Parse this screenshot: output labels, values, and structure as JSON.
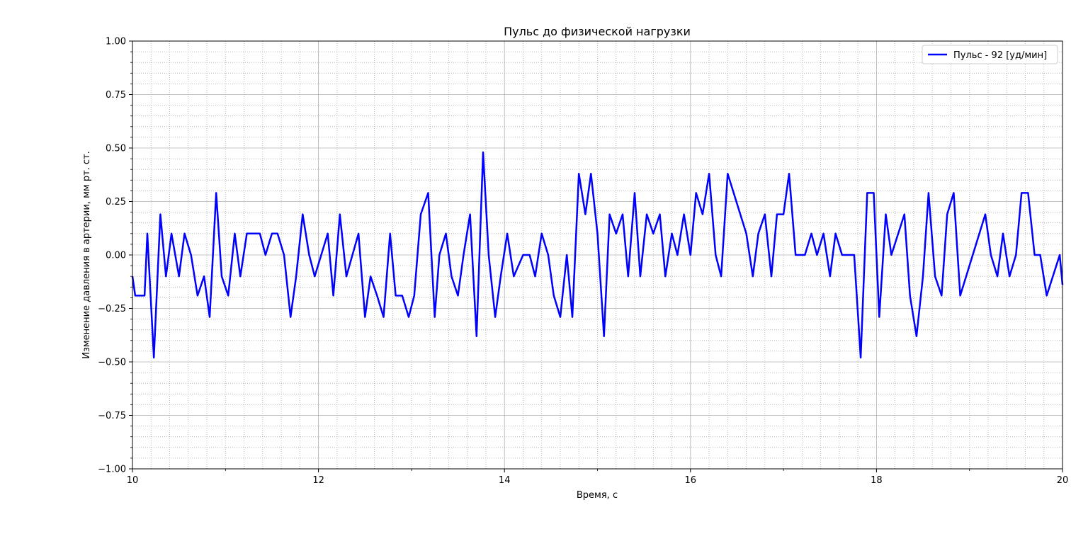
{
  "chart_data": {
    "type": "line",
    "title": "Пульс до физической нагрузки",
    "xlabel": "Время, с",
    "ylabel": "Изменение давления в артерии, мм рт. ст.",
    "xlim": [
      10,
      20
    ],
    "ylim": [
      -1.0,
      1.0
    ],
    "xticks": [
      10,
      12,
      14,
      16,
      18,
      20
    ],
    "xtick_labels": [
      "10",
      "12",
      "14",
      "16",
      "18",
      "20"
    ],
    "yticks": [
      1.0,
      0.75,
      0.5,
      0.25,
      0.0,
      -0.25,
      -0.5,
      -0.75,
      -1.0
    ],
    "ytick_labels": [
      "1.00",
      "0.75",
      "0.50",
      "0.25",
      "0.00",
      "−0.25",
      "−0.50",
      "−0.75",
      "−1.00"
    ],
    "grid": {
      "major": true,
      "minor": true
    },
    "legend": {
      "placement": "top-right"
    },
    "series": [
      {
        "name": "Пульс - 92 [уд/мин]",
        "color": "#0000ff",
        "x": [
          10.0,
          10.03,
          10.13,
          10.16,
          10.23,
          10.3,
          10.36,
          10.42,
          10.5,
          10.56,
          10.63,
          10.7,
          10.77,
          10.83,
          10.9,
          10.96,
          11.03,
          11.1,
          11.16,
          11.23,
          11.3,
          11.37,
          11.43,
          11.5,
          11.56,
          11.63,
          11.7,
          11.76,
          11.83,
          11.9,
          11.96,
          12.1,
          12.16,
          12.23,
          12.3,
          12.43,
          12.5,
          12.56,
          12.63,
          12.7,
          12.77,
          12.83,
          12.9,
          12.97,
          13.03,
          13.1,
          13.18,
          13.25,
          13.3,
          13.37,
          13.43,
          13.5,
          13.56,
          13.63,
          13.7,
          13.77,
          13.83,
          13.9,
          13.96,
          14.03,
          14.1,
          14.2,
          14.27,
          14.33,
          14.4,
          14.47,
          14.53,
          14.6,
          14.67,
          14.73,
          14.8,
          14.87,
          14.93,
          15.0,
          15.07,
          15.13,
          15.2,
          15.27,
          15.33,
          15.4,
          15.46,
          15.53,
          15.6,
          15.67,
          15.73,
          15.8,
          15.86,
          15.93,
          16.0,
          16.06,
          16.13,
          16.2,
          16.27,
          16.33,
          16.4,
          16.6,
          16.67,
          16.73,
          16.8,
          16.87,
          16.93,
          17.0,
          17.06,
          17.13,
          17.23,
          17.3,
          17.36,
          17.43,
          17.5,
          17.56,
          17.63,
          17.76,
          17.83,
          17.9,
          17.97,
          18.03,
          18.1,
          18.16,
          18.3,
          18.36,
          18.43,
          18.5,
          18.56,
          18.63,
          18.7,
          18.76,
          18.83,
          18.9,
          19.17,
          19.23,
          19.3,
          19.36,
          19.43,
          19.5,
          19.56,
          19.63,
          19.7,
          19.76,
          19.83,
          19.97,
          20.0
        ],
        "y": [
          -0.1,
          -0.19,
          -0.19,
          0.1,
          -0.48,
          0.19,
          -0.1,
          0.1,
          -0.1,
          0.1,
          0.0,
          -0.19,
          -0.1,
          -0.29,
          0.29,
          -0.1,
          -0.19,
          0.1,
          -0.1,
          0.1,
          0.1,
          0.1,
          0.0,
          0.1,
          0.1,
          0.0,
          -0.29,
          -0.1,
          0.19,
          0.0,
          -0.1,
          0.1,
          -0.19,
          0.19,
          -0.1,
          0.1,
          -0.29,
          -0.1,
          -0.19,
          -0.29,
          0.1,
          -0.19,
          -0.19,
          -0.29,
          -0.19,
          0.19,
          0.29,
          -0.29,
          0.0,
          0.1,
          -0.1,
          -0.19,
          0.0,
          0.19,
          -0.38,
          0.48,
          0.0,
          -0.29,
          -0.1,
          0.1,
          -0.1,
          0.0,
          0.0,
          -0.1,
          0.1,
          0.0,
          -0.19,
          -0.29,
          0.0,
          -0.29,
          0.38,
          0.19,
          0.38,
          0.1,
          -0.38,
          0.19,
          0.1,
          0.19,
          -0.1,
          0.29,
          -0.1,
          0.19,
          0.1,
          0.19,
          -0.1,
          0.1,
          0.0,
          0.19,
          0.0,
          0.29,
          0.19,
          0.38,
          0.0,
          -0.1,
          0.38,
          0.1,
          -0.1,
          0.1,
          0.19,
          -0.1,
          0.19,
          0.19,
          0.38,
          0.0,
          0.0,
          0.1,
          0.0,
          0.1,
          -0.1,
          0.1,
          0.0,
          0.0,
          -0.48,
          0.29,
          0.29,
          -0.29,
          0.19,
          0.0,
          0.19,
          -0.19,
          -0.38,
          -0.1,
          0.29,
          -0.1,
          -0.19,
          0.19,
          0.29,
          -0.19,
          0.19,
          0.0,
          -0.1,
          0.1,
          -0.1,
          0.0,
          0.29,
          0.29,
          0.0,
          0.0,
          -0.19,
          0.0,
          -0.14
        ]
      }
    ]
  }
}
